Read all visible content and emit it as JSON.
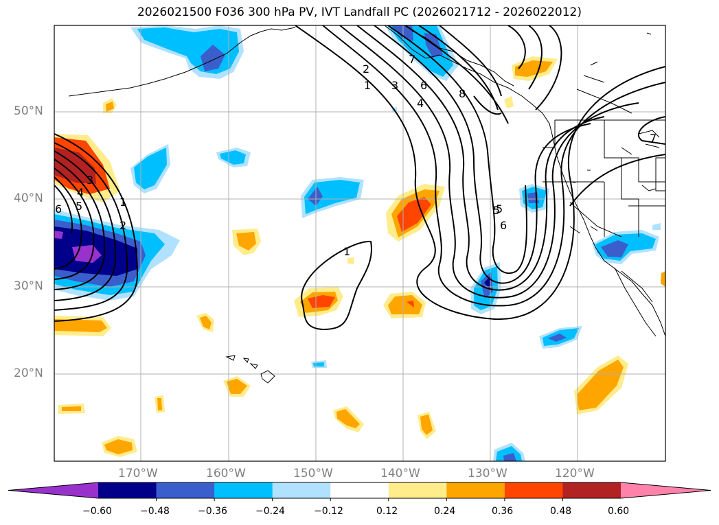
{
  "title": "2026021500 F036 300 hPa PV, IVT Landfall PC (2026021712 - 2026022012)",
  "map": {
    "lat_ticks": [
      "50°N",
      "40°N",
      "30°N",
      "20°N"
    ],
    "lon_ticks": [
      "170°W",
      "160°W",
      "150°W",
      "140°W",
      "130°W",
      "120°W"
    ],
    "contour_labels": [
      "1",
      "2",
      "3",
      "4",
      "5",
      "6",
      "7",
      "8",
      "1",
      "2",
      "3",
      "4",
      "5",
      "6",
      "1",
      "5",
      "6",
      "7"
    ]
  },
  "colorbar": {
    "colors": [
      "#9932cc",
      "#00008b",
      "#3a5fcd",
      "#00bfff",
      "#b0e2ff",
      "#ffffff",
      "#ffec8b",
      "#ffa500",
      "#ff4500",
      "#b22222",
      "#ff82ab"
    ],
    "ticks": [
      "−0.60",
      "−0.48",
      "−0.36",
      "−0.24",
      "−0.12",
      "0.12",
      "0.24",
      "0.36",
      "0.48",
      "0.60"
    ]
  }
}
